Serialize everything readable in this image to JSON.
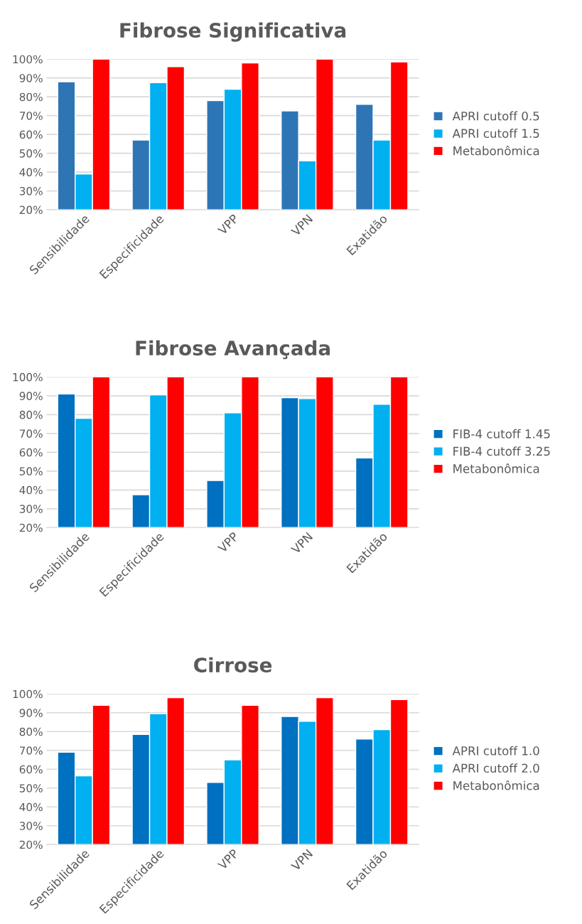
{
  "chart_data": [
    {
      "type": "bar",
      "title": "Fibrose Significativa",
      "categories": [
        "Sensibilidade",
        "Especificidade",
        "VPP",
        "VPN",
        "Exatidão"
      ],
      "series": [
        {
          "name": "APRI cutoff 0.5",
          "color": "#2e75b6",
          "values": [
            88,
            57,
            78,
            72.5,
            76
          ]
        },
        {
          "name": "APRI cutoff 1.5",
          "color": "#00b0f0",
          "values": [
            39,
            87.5,
            84,
            46,
            57
          ]
        },
        {
          "name": "Metabonômica",
          "color": "#ff0000",
          "values": [
            100,
            96,
            98,
            100,
            98.5
          ]
        }
      ],
      "ylim": [
        20,
        100
      ],
      "yticks": [
        {
          "value": 20,
          "label": "20%"
        },
        {
          "value": 30,
          "label": "30%"
        },
        {
          "value": 40,
          "label": "40%"
        },
        {
          "value": 50,
          "label": "50%"
        },
        {
          "value": 60,
          "label": "60%"
        },
        {
          "value": 70,
          "label": "70%"
        },
        {
          "value": 80,
          "label": "80%"
        },
        {
          "value": 90,
          "label": "90%"
        },
        {
          "value": 100,
          "label": "100%"
        }
      ],
      "grid": "y",
      "legend": "right"
    },
    {
      "type": "bar",
      "title": "Fibrose Avançada",
      "categories": [
        "Sensibilidade",
        "Especificidade",
        "VPP",
        "VPN",
        "Exatidão"
      ],
      "series": [
        {
          "name": "FIB-4 cutoff 1.45",
          "color": "#0070c0",
          "values": [
            91,
            37.5,
            45,
            89,
            57
          ]
        },
        {
          "name": "FIB-4 cutoff 3.25",
          "color": "#00b0f0",
          "values": [
            78,
            90.5,
            81,
            88.5,
            85.5
          ]
        },
        {
          "name": "Metabonômica",
          "color": "#ff0000",
          "values": [
            100,
            100,
            100,
            100,
            100
          ]
        }
      ],
      "ylim": [
        20,
        100
      ],
      "yticks": [
        {
          "value": 20,
          "label": "20%"
        },
        {
          "value": 30,
          "label": "30%"
        },
        {
          "value": 40,
          "label": "40%"
        },
        {
          "value": 50,
          "label": "50%"
        },
        {
          "value": 60,
          "label": "60%"
        },
        {
          "value": 70,
          "label": "70%"
        },
        {
          "value": 80,
          "label": "80%"
        },
        {
          "value": 90,
          "label": "90%"
        },
        {
          "value": 100,
          "label": "100%"
        }
      ],
      "grid": "y",
      "legend": "right"
    },
    {
      "type": "bar",
      "title": "Cirrose",
      "categories": [
        "Sensibilidade",
        "Especificidade",
        "VPP",
        "VPN",
        "Exatidão"
      ],
      "series": [
        {
          "name": "APRI cutoff 1.0",
          "color": "#0070c0",
          "values": [
            69,
            78.5,
            53,
            88,
            76
          ]
        },
        {
          "name": "APRI cutoff 2.0",
          "color": "#00b0f0",
          "values": [
            56.5,
            89.5,
            65,
            85.5,
            81
          ]
        },
        {
          "name": "Metabonômica",
          "color": "#ff0000",
          "values": [
            94,
            98,
            94,
            98,
            97
          ]
        }
      ],
      "ylim": [
        20,
        100
      ],
      "yticks": [
        {
          "value": 20,
          "label": "20%"
        },
        {
          "value": 30,
          "label": "30%"
        },
        {
          "value": 40,
          "label": "40%"
        },
        {
          "value": 50,
          "label": "50%"
        },
        {
          "value": 60,
          "label": "60%"
        },
        {
          "value": 70,
          "label": "70%"
        },
        {
          "value": 80,
          "label": "80%"
        },
        {
          "value": 90,
          "label": "90%"
        },
        {
          "value": 100,
          "label": "100%"
        }
      ],
      "grid": "y",
      "legend": "right"
    }
  ]
}
